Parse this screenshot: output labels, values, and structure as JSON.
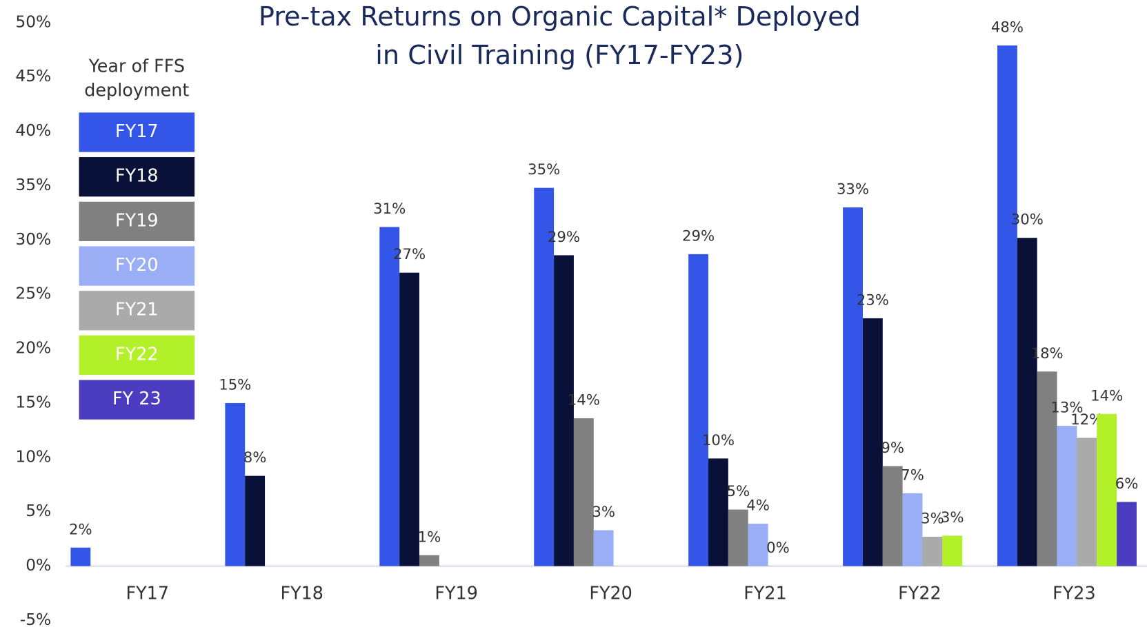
{
  "chart_data": {
    "type": "bar",
    "title": [
      "Pre-tax Returns on Organic Capital* Deployed",
      "in Civil Training (FY17-FY23)"
    ],
    "legend_title": [
      "Year of FFS",
      "deployment"
    ],
    "categories": [
      "FY17",
      "FY18",
      "FY19",
      "FY20",
      "FY21",
      "FY22",
      "FY23"
    ],
    "series": [
      {
        "name": "FY17",
        "color": "#3355e8",
        "values": [
          1.7,
          15,
          31.2,
          34.8,
          28.7,
          33,
          47.9
        ],
        "value_labels": [
          "2%",
          "15%",
          "31%",
          "35%",
          "29%",
          "33%",
          "48%"
        ]
      },
      {
        "name": "FY18",
        "color": "#0a1138",
        "values": [
          null,
          8.3,
          27,
          28.6,
          9.9,
          22.8,
          30.2
        ],
        "value_labels": [
          null,
          "8%",
          "27%",
          "29%",
          "10%",
          "23%",
          "30%"
        ]
      },
      {
        "name": "FY19",
        "color": "#808080",
        "values": [
          null,
          null,
          1.0,
          13.6,
          5.2,
          9.2,
          17.9
        ],
        "value_labels": [
          null,
          null,
          "1%",
          "14%",
          "5%",
          "9%",
          "18%"
        ]
      },
      {
        "name": "FY20",
        "color": "#9aaef5",
        "values": [
          null,
          null,
          null,
          3.3,
          3.9,
          6.7,
          12.9
        ],
        "value_labels": [
          null,
          null,
          null,
          "3%",
          "4%",
          "7%",
          "13%"
        ]
      },
      {
        "name": "FY21",
        "color": "#aaaaaa",
        "values": [
          null,
          null,
          null,
          null,
          0,
          2.7,
          11.8
        ],
        "value_labels": [
          null,
          null,
          null,
          null,
          "0%",
          "3%",
          "12%"
        ]
      },
      {
        "name": "FY22",
        "color": "#b2f02a",
        "values": [
          null,
          null,
          null,
          null,
          null,
          2.8,
          14
        ],
        "value_labels": [
          null,
          null,
          null,
          null,
          null,
          "3%",
          "14%"
        ]
      },
      {
        "name": "FY 23",
        "color": "#4b3cc0",
        "values": [
          null,
          null,
          null,
          null,
          null,
          null,
          5.9
        ],
        "value_labels": [
          null,
          null,
          null,
          null,
          null,
          null,
          "6%"
        ]
      }
    ],
    "ylim": [
      -5,
      50
    ],
    "yticks": [
      {
        "value": -5,
        "label": "-5%"
      },
      {
        "value": 0,
        "label": "0%"
      },
      {
        "value": 5,
        "label": "5%"
      },
      {
        "value": 10,
        "label": "10%"
      },
      {
        "value": 15,
        "label": "15%"
      },
      {
        "value": 20,
        "label": "20%"
      },
      {
        "value": 25,
        "label": "25%"
      },
      {
        "value": 30,
        "label": "30%"
      },
      {
        "value": 35,
        "label": "35%"
      },
      {
        "value": 40,
        "label": "40%"
      },
      {
        "value": 45,
        "label": "45%"
      },
      {
        "value": 50,
        "label": "50%"
      }
    ]
  }
}
